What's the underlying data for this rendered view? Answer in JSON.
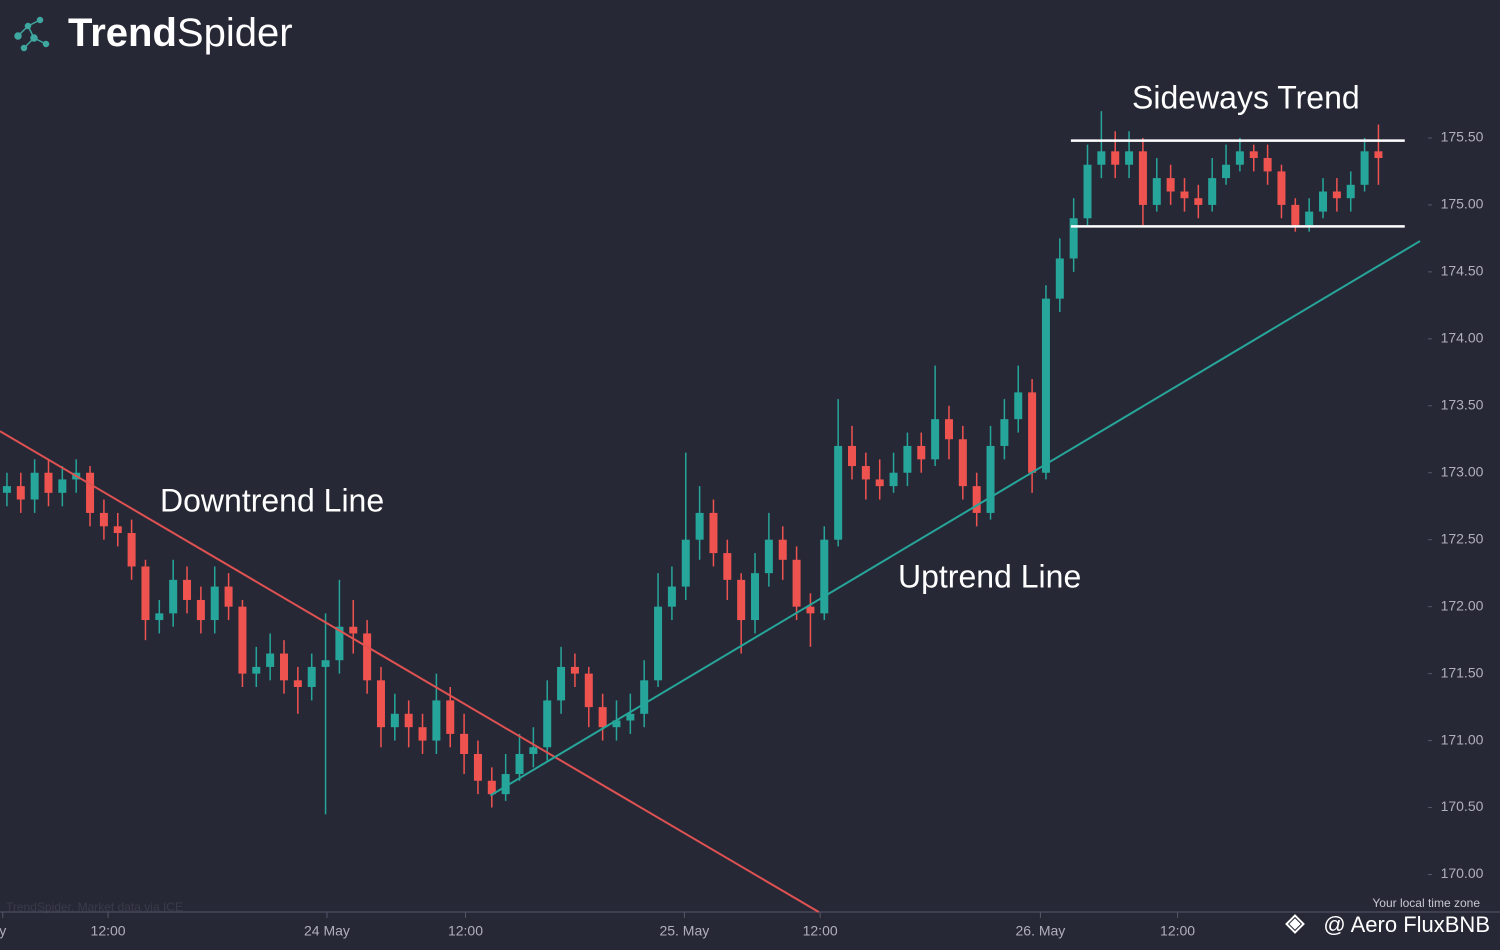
{
  "chart_data": {
    "type": "candlestick",
    "brand": {
      "bold": "Trend",
      "light": "Spider"
    },
    "watermark": "TrendSpider. Market data via ICE",
    "timezone_note": "Your local time zone",
    "credit": "@ Aero FluxBNB",
    "up_color": "#26a69a",
    "down_color": "#ef5350",
    "xlim": [
      -0.5,
      102
    ],
    "ylim": [
      169.72,
      176.53
    ],
    "xticks": [
      {
        "value": -0.3,
        "label": "y"
      },
      {
        "value": 7.3,
        "label": "12:00"
      },
      {
        "value": 23.1,
        "label": "24 May"
      },
      {
        "value": 33.1,
        "label": "12:00"
      },
      {
        "value": 48.9,
        "label": "25. May"
      },
      {
        "value": 58.7,
        "label": "12:00"
      },
      {
        "value": 74.6,
        "label": "26. May"
      },
      {
        "value": 84.5,
        "label": "12:00"
      }
    ],
    "yticks": [
      {
        "value": 170,
        "label": "170.00"
      },
      {
        "value": 170.5,
        "label": "170.50"
      },
      {
        "value": 171,
        "label": "171.00"
      },
      {
        "value": 171.5,
        "label": "171.50"
      },
      {
        "value": 172,
        "label": "172.00"
      },
      {
        "value": 172.5,
        "label": "172.50"
      },
      {
        "value": 173,
        "label": "173.00"
      },
      {
        "value": 173.5,
        "label": "173.50"
      },
      {
        "value": 174,
        "label": "174.00"
      },
      {
        "value": 174.5,
        "label": "174.50"
      },
      {
        "value": 175,
        "label": "175.00"
      },
      {
        "value": 175.5,
        "label": "175.50"
      }
    ],
    "lines": [
      {
        "label": "Downtrend Line",
        "color": "#e05252",
        "x": [
          -0.5,
          58.6
        ],
        "y": [
          173.31,
          169.72
        ]
      },
      {
        "label": "Uptrend Line",
        "color": "#26a69a",
        "x": [
          34.9,
          102
        ],
        "y": [
          170.59,
          174.73
        ]
      },
      {
        "label": "Sideways Trend",
        "color": "#ffffff",
        "x": [
          76.8,
          100.9
        ],
        "y": [
          175.48,
          175.48
        ]
      },
      {
        "color": "#ffffff",
        "x": [
          76.8,
          100.9
        ],
        "y": [
          174.84,
          174.84
        ]
      }
    ],
    "x": [
      0,
      1,
      2,
      3,
      4,
      5,
      6,
      7,
      8,
      9,
      10,
      11,
      12,
      13,
      14,
      15,
      16,
      17,
      18,
      19,
      20,
      21,
      22,
      23,
      24,
      25,
      26,
      27,
      28,
      29,
      30,
      31,
      32,
      33,
      34,
      35,
      36,
      37,
      38,
      39,
      40,
      41,
      42,
      43,
      44,
      45,
      46,
      47,
      48,
      49,
      50,
      51,
      52,
      53,
      54,
      55,
      56,
      57,
      58,
      59,
      60,
      61,
      62,
      63,
      64,
      65,
      66,
      67,
      68,
      69,
      70,
      71,
      72,
      73,
      74,
      75,
      76,
      77,
      78,
      79,
      80,
      81,
      82,
      83,
      84,
      85,
      86,
      87,
      88,
      89,
      90,
      91,
      92,
      93,
      94,
      95,
      96,
      97,
      98,
      99
    ],
    "open": [
      172.85,
      172.9,
      172.8,
      173,
      172.85,
      172.95,
      173,
      172.7,
      172.6,
      172.55,
      172.3,
      171.9,
      171.95,
      172.2,
      172.05,
      171.9,
      172.15,
      172,
      171.5,
      171.55,
      171.65,
      171.45,
      171.4,
      171.55,
      171.6,
      171.85,
      171.8,
      171.45,
      171.1,
      171.2,
      171.1,
      171,
      171.3,
      171.05,
      170.9,
      170.7,
      170.6,
      170.75,
      170.9,
      170.95,
      171.3,
      171.55,
      171.5,
      171.25,
      171.1,
      171.15,
      171.2,
      171.45,
      172,
      172.15,
      172.5,
      172.7,
      172.4,
      172.2,
      171.9,
      172.25,
      172.5,
      172.35,
      172,
      171.95,
      172.5,
      173.2,
      173.05,
      172.95,
      172.9,
      173,
      173.2,
      173.1,
      173.4,
      173.25,
      172.9,
      172.7,
      173.2,
      173.4,
      173.6,
      173,
      174.3,
      174.6,
      174.9,
      175.3,
      175.4,
      175.3,
      175.4,
      175,
      175.2,
      175.1,
      175.05,
      175,
      175.2,
      175.3,
      175.4,
      175.35,
      175.25,
      175,
      174.85,
      174.95,
      175.1,
      175.05,
      175.15,
      175.4
    ],
    "high": [
      173,
      173,
      173.1,
      173.1,
      173.05,
      173.1,
      173.05,
      172.8,
      172.7,
      172.65,
      172.35,
      172.05,
      172.35,
      172.3,
      172.15,
      172.3,
      172.25,
      172.05,
      171.7,
      171.8,
      171.75,
      171.55,
      171.65,
      171.95,
      172.2,
      172.05,
      171.9,
      171.55,
      171.35,
      171.3,
      171.2,
      171.5,
      171.4,
      171.2,
      171,
      170.8,
      170.9,
      171.05,
      171.1,
      171.45,
      171.7,
      171.65,
      171.55,
      171.35,
      171.3,
      171.35,
      171.6,
      172.25,
      172.3,
      173.15,
      172.9,
      172.8,
      172.5,
      172.25,
      172.4,
      172.7,
      172.6,
      172.45,
      172.1,
      172.6,
      173.55,
      173.35,
      173.15,
      173.1,
      173.15,
      173.3,
      173.3,
      173.8,
      173.5,
      173.35,
      173,
      173.35,
      173.55,
      173.8,
      173.7,
      174.4,
      174.75,
      175.05,
      175.45,
      175.7,
      175.55,
      175.55,
      175.5,
      175.35,
      175.3,
      175.2,
      175.15,
      175.35,
      175.45,
      175.5,
      175.45,
      175.45,
      175.3,
      175.05,
      175.05,
      175.2,
      175.2,
      175.25,
      175.5,
      175.6
    ],
    "low": [
      172.75,
      172.7,
      172.7,
      172.75,
      172.75,
      172.85,
      172.6,
      172.5,
      172.45,
      172.2,
      171.75,
      171.8,
      171.85,
      171.95,
      171.8,
      171.8,
      171.9,
      171.4,
      171.4,
      171.45,
      171.35,
      171.2,
      171.3,
      170.45,
      171.5,
      171.65,
      171.35,
      170.95,
      171,
      170.95,
      170.9,
      170.9,
      170.95,
      170.75,
      170.6,
      170.5,
      170.55,
      170.7,
      170.8,
      170.85,
      171.2,
      171.4,
      171.1,
      171,
      171,
      171.05,
      171.1,
      171.4,
      171.9,
      172.05,
      172.35,
      172.3,
      172.05,
      171.65,
      171.8,
      172.15,
      172.2,
      171.9,
      171.7,
      171.9,
      172.45,
      172.95,
      172.8,
      172.8,
      172.85,
      172.9,
      173,
      173.05,
      173.1,
      172.8,
      172.6,
      172.65,
      173.1,
      173.3,
      172.85,
      172.95,
      174.2,
      174.5,
      174.85,
      175.2,
      175.2,
      175.2,
      174.85,
      174.95,
      175,
      174.95,
      174.9,
      174.95,
      175.15,
      175.25,
      175.25,
      175.15,
      174.9,
      174.8,
      174.8,
      174.9,
      174.95,
      174.95,
      175.1,
      175.15
    ],
    "close": [
      172.9,
      172.8,
      173,
      172.85,
      172.95,
      173,
      172.7,
      172.6,
      172.55,
      172.3,
      171.9,
      171.95,
      172.2,
      172.05,
      171.9,
      172.15,
      172,
      171.5,
      171.55,
      171.65,
      171.45,
      171.4,
      171.55,
      171.6,
      171.85,
      171.8,
      171.45,
      171.1,
      171.2,
      171.1,
      171,
      171.3,
      171.05,
      170.9,
      170.7,
      170.6,
      170.75,
      170.9,
      170.95,
      171.3,
      171.55,
      171.5,
      171.25,
      171.1,
      171.15,
      171.2,
      171.45,
      172,
      172.15,
      172.5,
      172.7,
      172.4,
      172.2,
      171.9,
      172.25,
      172.5,
      172.35,
      172,
      171.95,
      172.5,
      173.2,
      173.05,
      172.95,
      172.9,
      173,
      173.2,
      173.1,
      173.4,
      173.25,
      172.9,
      172.7,
      173.2,
      173.4,
      173.6,
      173,
      174.3,
      174.6,
      174.9,
      175.3,
      175.4,
      175.3,
      175.4,
      175,
      175.2,
      175.1,
      175.05,
      175,
      175.2,
      175.3,
      175.4,
      175.35,
      175.25,
      175,
      174.85,
      174.95,
      175.1,
      175.05,
      175.15,
      175.4,
      175.35
    ]
  }
}
